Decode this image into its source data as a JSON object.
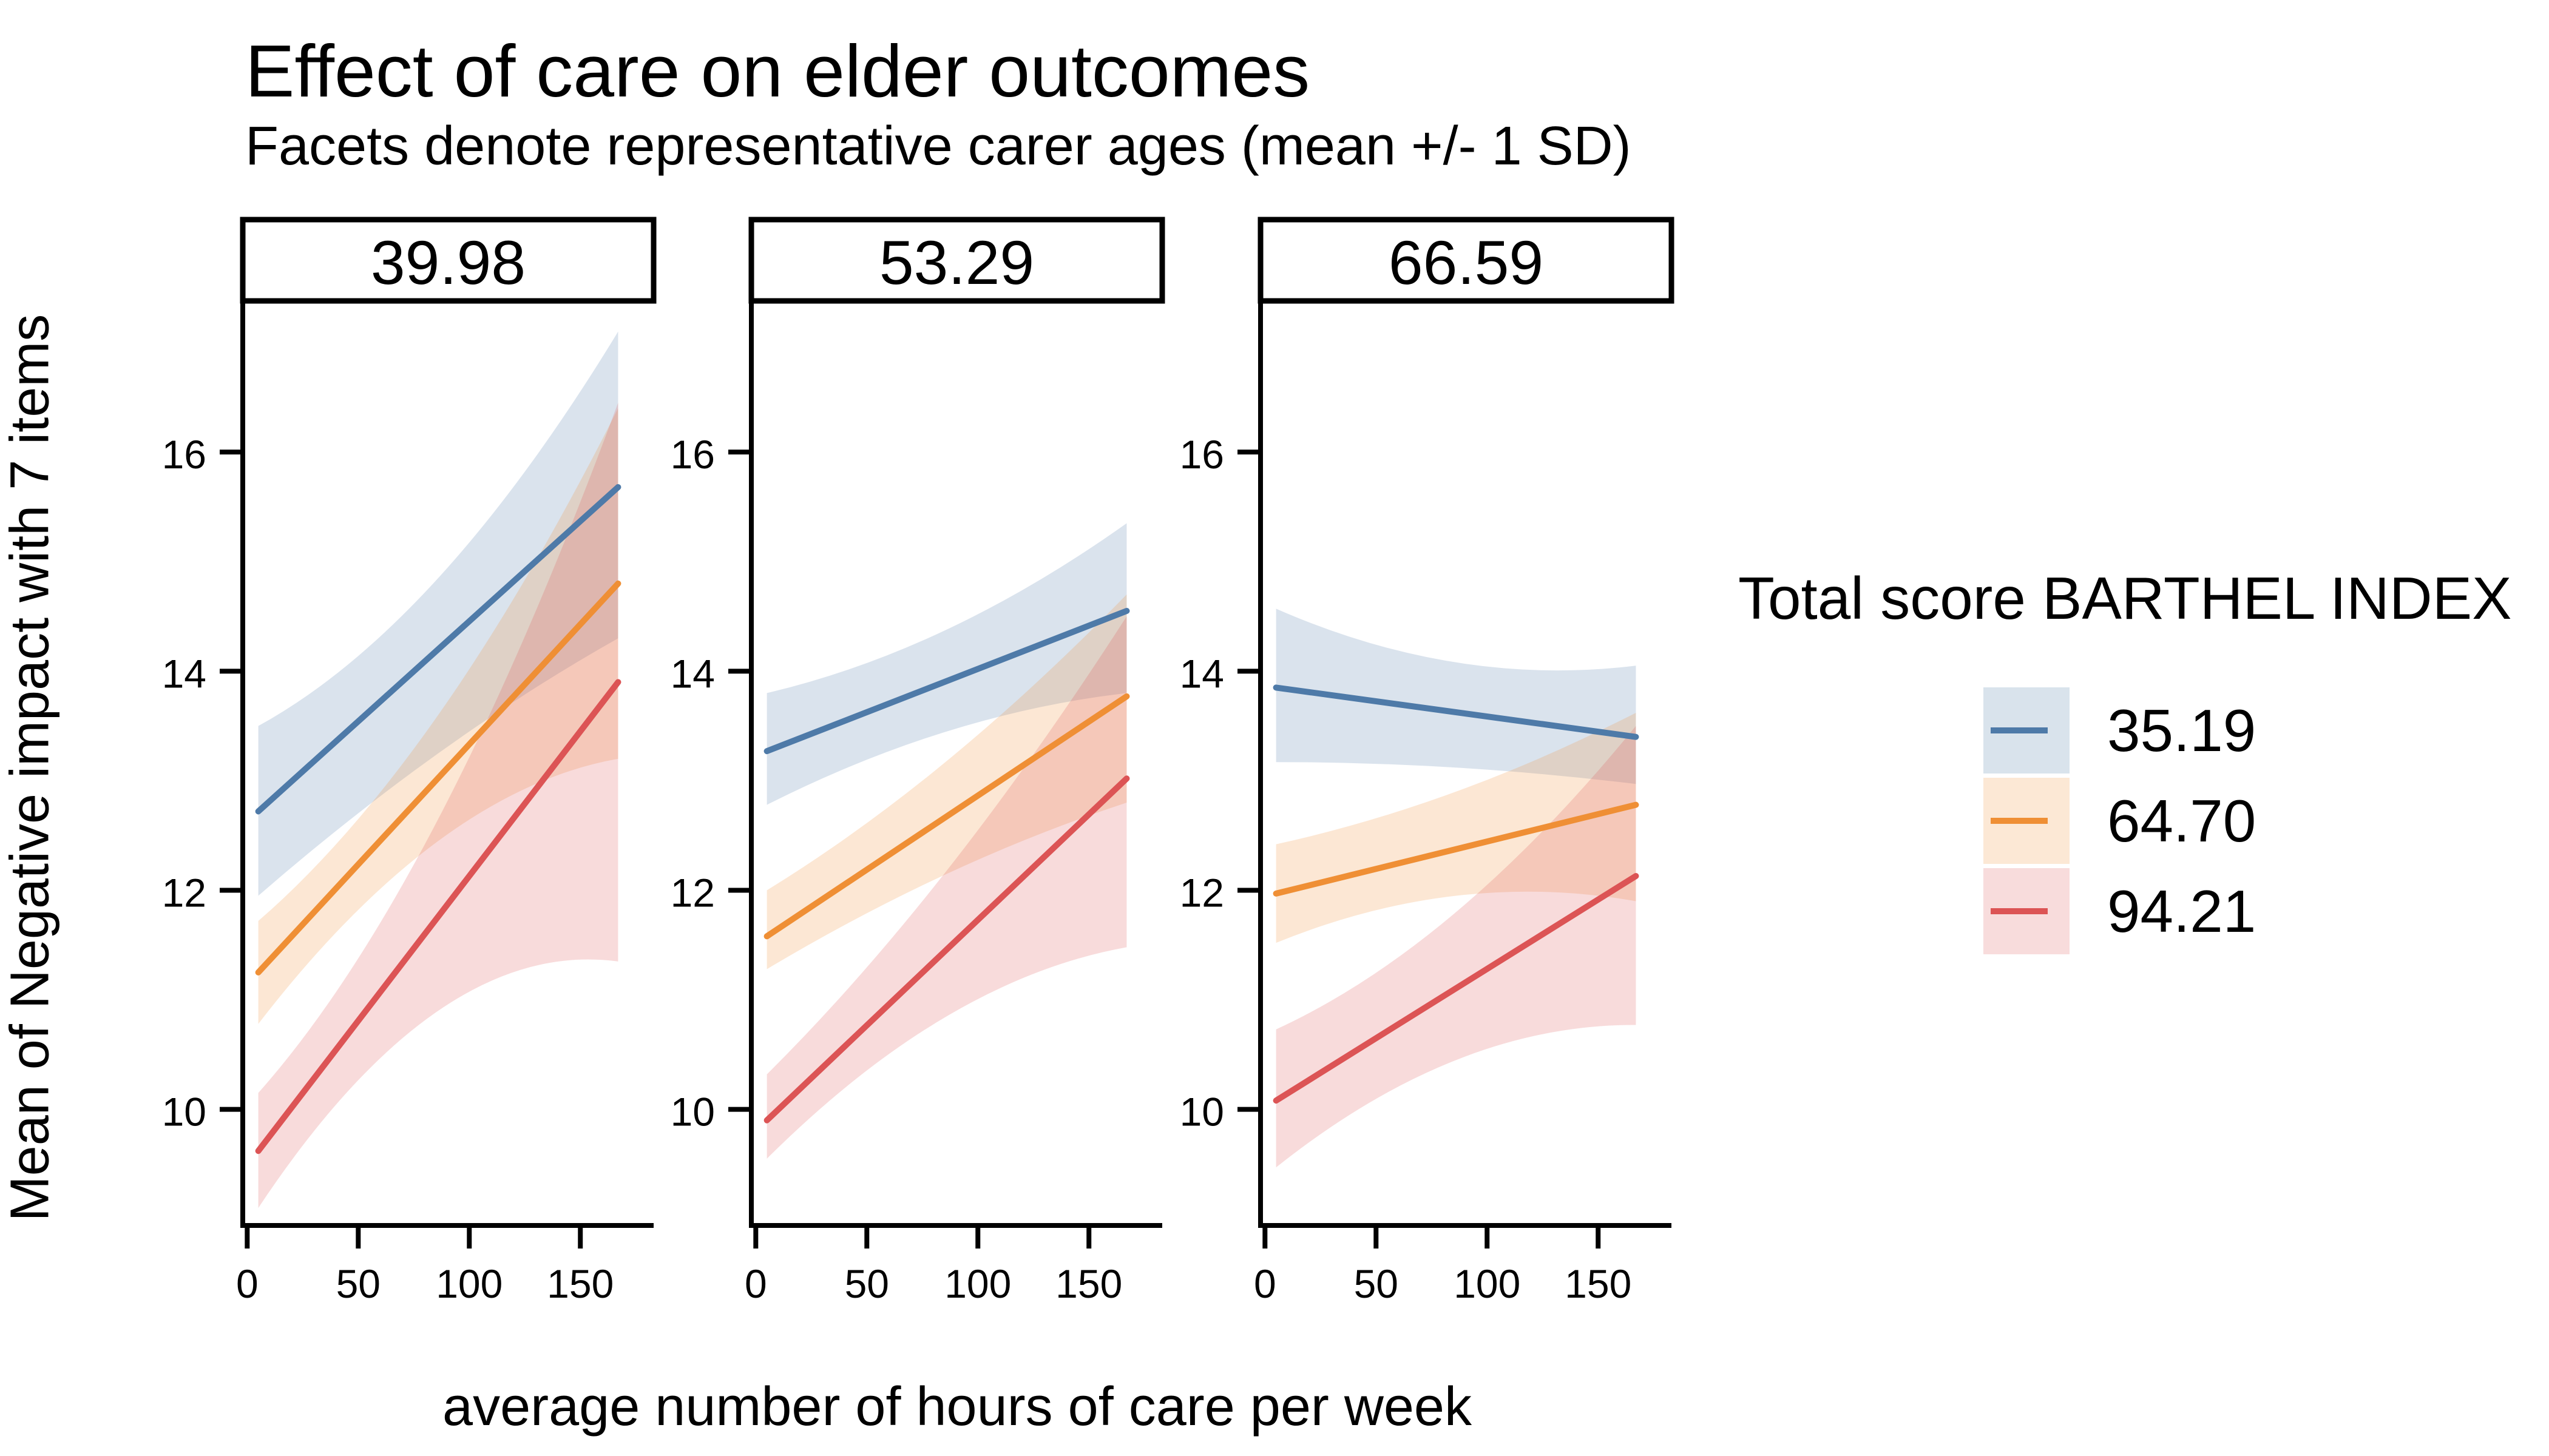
{
  "title": "Effect of care on elder outcomes",
  "subtitle": "Facets denote representative carer ages (mean +/- 1 SD)",
  "x_axis_title": "average number of hours of care per week",
  "y_axis_title": "Mean of Negative impact with 7 items",
  "legend": {
    "title": "Total score BARTHEL INDEX",
    "items": [
      {
        "label": "35.19",
        "color": "#4e7aa8",
        "fill": "#d9e3ec"
      },
      {
        "label": "64.70",
        "color": "#ef8f35",
        "fill": "#fce8d5"
      },
      {
        "label": "94.21",
        "color": "#dc5455",
        "fill": "#f8dcdc"
      }
    ]
  },
  "chart_data": {
    "type": "line",
    "title": "Effect of care on elder outcomes",
    "subtitle": "Facets denote representative carer ages (mean +/- 1 SD)",
    "xlabel": "average number of hours of care per week",
    "ylabel": "Mean of Negative impact with 7 items",
    "legend_title": "Total score BARTHEL INDEX",
    "facet_variable": "representative carer age",
    "x_ticks": [
      0,
      50,
      100,
      150
    ],
    "y_ticks": [
      16,
      14,
      12,
      10
    ],
    "x_range": [
      -2,
      183
    ],
    "y_range": [
      8.94,
      17.38
    ],
    "line_x": [
      5,
      86,
      167
    ],
    "grid": "off",
    "legend_position": "right",
    "facets": [
      {
        "label": "39.98",
        "series": [
          {
            "name": "35.19",
            "color": "#4e7aa8",
            "line": [
              12.72,
              15.68
            ],
            "upper": [
              13.5,
              14.85,
              17.1
            ],
            "lower": [
              11.95,
              13.25,
              14.3
            ]
          },
          {
            "name": "64.70",
            "color": "#ef8f35",
            "line": [
              11.25,
              14.8
            ],
            "upper": [
              11.72,
              13.6,
              16.4
            ],
            "lower": [
              10.78,
              12.45,
              13.2
            ]
          },
          {
            "name": "94.21",
            "color": "#dc5455",
            "line": [
              9.62,
              13.9
            ],
            "upper": [
              10.15,
              12.65,
              16.45
            ],
            "lower": [
              9.1,
              10.9,
              11.35
            ]
          }
        ]
      },
      {
        "label": "53.29",
        "series": [
          {
            "name": "35.19",
            "color": "#4e7aa8",
            "line": [
              13.27,
              14.55
            ],
            "upper": [
              13.8,
              14.38,
              15.35
            ],
            "lower": [
              12.78,
              13.45,
              13.8
            ]
          },
          {
            "name": "64.70",
            "color": "#ef8f35",
            "line": [
              11.58,
              13.77
            ],
            "upper": [
              12.0,
              13.18,
              14.7
            ],
            "lower": [
              11.28,
              12.15,
              12.8
            ]
          },
          {
            "name": "94.21",
            "color": "#dc5455",
            "line": [
              9.9,
              13.02
            ],
            "upper": [
              10.32,
              12.18,
              14.5
            ],
            "lower": [
              9.55,
              10.85,
              11.48
            ]
          }
        ]
      },
      {
        "label": "66.59",
        "series": [
          {
            "name": "35.19",
            "color": "#4e7aa8",
            "line": [
              13.85,
              13.4
            ],
            "upper": [
              14.57,
              14.08,
              14.05
            ],
            "lower": [
              13.17,
              13.12,
              12.97
            ]
          },
          {
            "name": "64.70",
            "color": "#ef8f35",
            "line": [
              11.97,
              12.78
            ],
            "upper": [
              12.42,
              12.9,
              13.62
            ],
            "lower": [
              11.52,
              11.95,
              11.9
            ]
          },
          {
            "name": "94.21",
            "color": "#dc5455",
            "line": [
              10.08,
              12.13
            ],
            "upper": [
              10.73,
              11.8,
              13.5
            ],
            "lower": [
              9.47,
              10.45,
              10.77
            ]
          }
        ]
      }
    ]
  }
}
